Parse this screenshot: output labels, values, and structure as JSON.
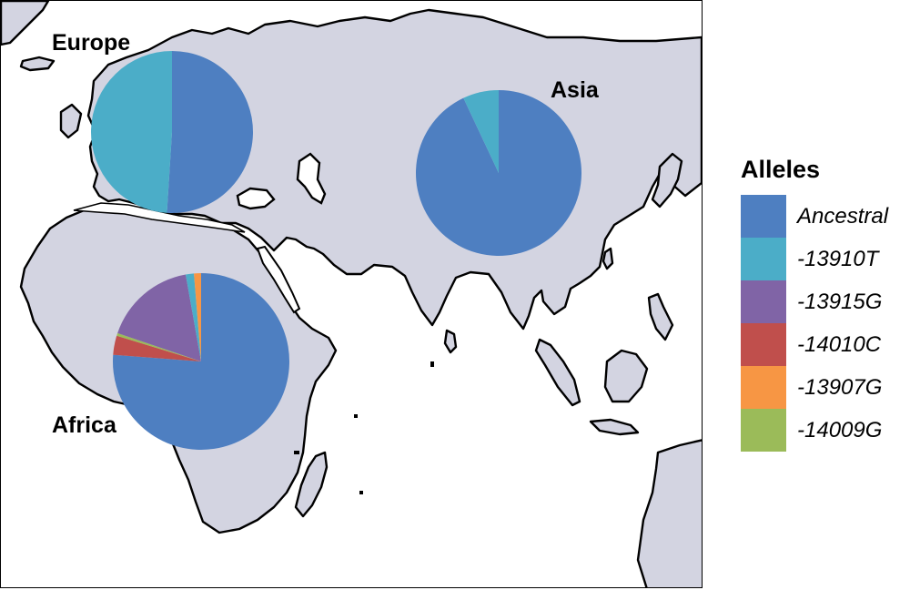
{
  "map": {
    "regions": [
      {
        "id": "europe",
        "label": "Europe",
        "slices": [
          {
            "allele": "Ancestral",
            "fraction": 0.51
          },
          {
            "allele": "-13910T",
            "fraction": 0.49
          }
        ]
      },
      {
        "id": "asia",
        "label": "Asia",
        "slices": [
          {
            "allele": "Ancestral",
            "fraction": 0.93
          },
          {
            "allele": "-13910T",
            "fraction": 0.07
          }
        ]
      },
      {
        "id": "africa",
        "label": "Africa",
        "slices": [
          {
            "allele": "Ancestral",
            "fraction": 0.762
          },
          {
            "allele": "-14010C",
            "fraction": 0.035
          },
          {
            "allele": "-14009G",
            "fraction": 0.005
          },
          {
            "allele": "-13915G",
            "fraction": 0.17
          },
          {
            "allele": "-13910T",
            "fraction": 0.015
          },
          {
            "allele": "-13907G",
            "fraction": 0.013
          }
        ]
      }
    ],
    "colors": {
      "land": "#d3d4e1",
      "coastline": "#000000",
      "ocean": "#ffffff"
    }
  },
  "legend": {
    "title": "Alleles",
    "items": [
      {
        "label": "Ancestral",
        "color": "#4e7fc1"
      },
      {
        "label": "-13910T",
        "color": "#4badc8"
      },
      {
        "label": "-13915G",
        "color": "#8064a6"
      },
      {
        "label": "-14010C",
        "color": "#c04f4c"
      },
      {
        "label": "-13907G",
        "color": "#f79644"
      },
      {
        "label": "-14009G",
        "color": "#9bbb59"
      }
    ]
  }
}
